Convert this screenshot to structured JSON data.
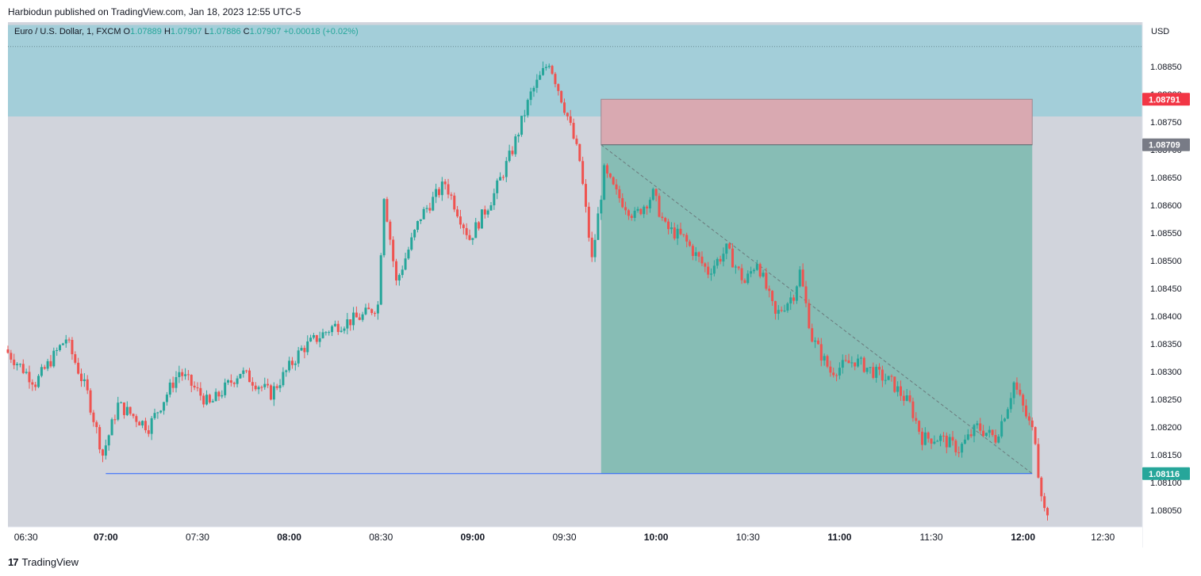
{
  "header": {
    "publisher_line": "Harbiodun published on TradingView.com, Jan 18, 2023 12:55 UTC-5"
  },
  "legend": {
    "symbol": "Euro / U.S. Dollar, 1, FXCM",
    "o_label": "O",
    "o": "1.07889",
    "h_label": "H",
    "h": "1.07907",
    "l_label": "L",
    "l": "1.07886",
    "c_label": "C",
    "c": "1.07907",
    "change": "+0.00018 (+0.02%)"
  },
  "currency": "USD",
  "footer": {
    "brand": "TradingView",
    "logo_text": "17"
  },
  "colors": {
    "up": "#26a69a",
    "down": "#ef5350",
    "background": "#d1d4dc",
    "supply_zone": "#a3ced9",
    "stop_zone": "#d9a9b1",
    "target_zone": "#87bdb5",
    "line": "#2962ff"
  },
  "chart_data": {
    "type": "candlestick",
    "y_ticks": [
      "1.08850",
      "1.08800",
      "1.08750",
      "1.08700",
      "1.08650",
      "1.08600",
      "1.08550",
      "1.08500",
      "1.08450",
      "1.08400",
      "1.08350",
      "1.08300",
      "1.08250",
      "1.08200",
      "1.08150",
      "1.08100",
      "1.08050"
    ],
    "x_ticks": [
      "06:30",
      "07:00",
      "07:30",
      "08:00",
      "08:30",
      "09:00",
      "09:30",
      "10:00",
      "10:30",
      "11:00",
      "11:30",
      "12:00",
      "12:30"
    ],
    "x_ticks_bold": [
      "07:00",
      "08:00",
      "09:00",
      "10:00",
      "11:00",
      "12:00"
    ],
    "ylim": [
      1.0802,
      1.0893
    ],
    "xlim": [
      "06:28",
      "12:39"
    ],
    "price_labels": [
      {
        "text": "1.08791",
        "value": 1.08791,
        "color": "#f23645"
      },
      {
        "text": "1.08709",
        "value": 1.08709,
        "color": "#787b86"
      },
      {
        "text": "1.08116",
        "value": 1.08116,
        "color": "#26a69a"
      }
    ],
    "supply_zone": {
      "from": "06:28",
      "to": "12:39",
      "low": 1.0876,
      "high": 1.08925
    },
    "short_position": {
      "from": "09:42",
      "to": "12:03",
      "entry": 1.08709,
      "stop": 1.08791,
      "target": 1.08116
    },
    "horizontal_line": {
      "from": "07:00",
      "to": "12:03",
      "value": 1.08116
    },
    "dotted_line": {
      "value": 1.08886
    },
    "path_points": [
      [
        "06:28",
        1.0834
      ],
      [
        "06:38",
        1.0828
      ],
      [
        "06:48",
        1.0836
      ],
      [
        "06:55",
        1.0826
      ],
      [
        "07:00",
        1.0815
      ],
      [
        "07:05",
        1.0824
      ],
      [
        "07:15",
        1.082
      ],
      [
        "07:25",
        1.083
      ],
      [
        "07:35",
        1.0824
      ],
      [
        "07:45",
        1.083
      ],
      [
        "07:55",
        1.0826
      ],
      [
        "08:05",
        1.0834
      ],
      [
        "08:15",
        1.0838
      ],
      [
        "08:25",
        1.084
      ],
      [
        "08:30",
        1.0842
      ],
      [
        "08:32",
        1.0862
      ],
      [
        "08:36",
        1.0846
      ],
      [
        "08:44",
        1.0858
      ],
      [
        "08:52",
        1.0864
      ],
      [
        "09:00",
        1.0854
      ],
      [
        "09:08",
        1.0862
      ],
      [
        "09:14",
        1.087
      ],
      [
        "09:20",
        1.088
      ],
      [
        "09:26",
        1.0886
      ],
      [
        "09:32",
        1.0876
      ],
      [
        "09:36",
        1.0868
      ],
      [
        "09:40",
        1.085
      ],
      [
        "09:44",
        1.0866
      ],
      [
        "09:48",
        1.0862
      ],
      [
        "09:54",
        1.0858
      ],
      [
        "10:00",
        1.0862
      ],
      [
        "10:04",
        1.0856
      ],
      [
        "10:10",
        1.0854
      ],
      [
        "10:18",
        1.0848
      ],
      [
        "10:24",
        1.0852
      ],
      [
        "10:30",
        1.0846
      ],
      [
        "10:34",
        1.085
      ],
      [
        "10:40",
        1.084
      ],
      [
        "10:46",
        1.0844
      ],
      [
        "10:48",
        1.0848
      ],
      [
        "10:52",
        1.0836
      ],
      [
        "10:58",
        1.083
      ],
      [
        "11:06",
        1.0832
      ],
      [
        "11:12",
        1.083
      ],
      [
        "11:18",
        1.0828
      ],
      [
        "11:24",
        1.0824
      ],
      [
        "11:28",
        1.0818
      ],
      [
        "11:34",
        1.0818
      ],
      [
        "11:40",
        1.0816
      ],
      [
        "11:46",
        1.082
      ],
      [
        "11:52",
        1.0818
      ],
      [
        "11:56",
        1.0824
      ],
      [
        "11:58",
        1.0828
      ],
      [
        "12:02",
        1.0822
      ],
      [
        "12:05",
        1.0818
      ],
      [
        "12:06",
        1.0812
      ],
      [
        "12:08",
        1.0805
      ]
    ]
  }
}
